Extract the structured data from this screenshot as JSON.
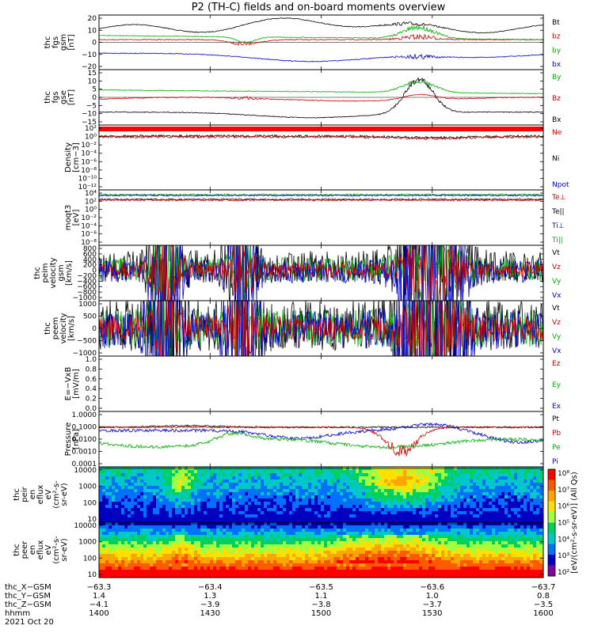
{
  "title": "P2 (TH-C) fields and on-board moments overview",
  "chart_data": {
    "type": "line",
    "title": "P2 (TH-C) fields and on-board moments overview",
    "panels": [
      {
        "id": "fgs-gsm",
        "ylabel": [
          "thc",
          "fgs",
          "gsm",
          "[nT]"
        ],
        "ylim": [
          -20,
          20
        ],
        "ticks": [
          "20",
          "10",
          "0",
          "−10",
          "−20"
        ],
        "legend": [
          {
            "name": "Bt",
            "color": "#000000"
          },
          {
            "name": "bz",
            "color": "#d00000"
          },
          {
            "name": "by",
            "color": "#00b000"
          },
          {
            "name": "bx",
            "color": "#0000d0"
          }
        ]
      },
      {
        "id": "fgs-gse",
        "ylabel": [
          "thc",
          "fgs",
          "gse",
          "[nT]"
        ],
        "ylim": [
          -15,
          15
        ],
        "ticks": [
          "15",
          "10",
          "5",
          "0",
          "−5",
          "−10",
          "−15"
        ],
        "legend": [
          {
            "name": "By",
            "color": "#00b000"
          },
          {
            "name": "Bz",
            "color": "#d00000"
          },
          {
            "name": "Bx",
            "color": "#000000"
          }
        ]
      },
      {
        "id": "density",
        "ylabel": [
          "Density",
          "[cm−3]"
        ],
        "ticks": [
          "10²",
          "10⁰",
          "10⁻²",
          "10⁻⁴",
          "10⁻⁶",
          "10⁻⁸",
          "10⁻¹⁰",
          "10⁻¹²"
        ],
        "legend": [
          {
            "name": "Ne",
            "color": "#d00000"
          },
          {
            "name": "Ni",
            "color": "#000000"
          },
          {
            "name": "Npot",
            "color": "#0000d0"
          }
        ]
      },
      {
        "id": "temperature",
        "ylabel": [
          "moqt3",
          "[eV]"
        ],
        "ticks": [
          "10⁴",
          "10²",
          "10⁰",
          "10⁻²",
          "10⁻⁴",
          "10⁻⁶",
          "10⁻⁸"
        ],
        "legend": [
          {
            "name": "Te⊥",
            "color": "#d00000"
          },
          {
            "name": "Te||",
            "color": "#000000"
          },
          {
            "name": "Ti⊥",
            "color": "#0000d0"
          },
          {
            "name": "Ti||",
            "color": "#00b000"
          }
        ]
      },
      {
        "id": "peim-velocity",
        "ylabel": [
          "thc",
          "peim",
          "velocity",
          "gsm",
          "[km/s]"
        ],
        "ylim": [
          -1000,
          800
        ],
        "ticks": [
          "800",
          "600",
          "400",
          "200",
          "0",
          "−200",
          "−400",
          "−600",
          "−800",
          "−1000"
        ],
        "legend": [
          {
            "name": "Vt",
            "color": "#000000"
          },
          {
            "name": "Vz",
            "color": "#d00000"
          },
          {
            "name": "Vy",
            "color": "#00b000"
          },
          {
            "name": "Vx",
            "color": "#0000d0"
          }
        ]
      },
      {
        "id": "peem-velocity",
        "ylabel": [
          "thc",
          "peem",
          "velocity",
          "[km/s]"
        ],
        "ylim": [
          -1000,
          1000
        ],
        "ticks": [
          "1000",
          "500",
          "0",
          "−500",
          "−1000"
        ],
        "legend": [
          {
            "name": "Vt",
            "color": "#000000"
          },
          {
            "name": "Vz",
            "color": "#d00000"
          },
          {
            "name": "Vy",
            "color": "#00b000"
          },
          {
            "name": "Vx",
            "color": "#0000d0"
          }
        ]
      },
      {
        "id": "efield",
        "ylabel": [
          "E=−VxB",
          "[mV/m]"
        ],
        "ylim": [
          0,
          1
        ],
        "ticks": [
          "1.0",
          "0.8",
          "0.6",
          "0.4",
          "0.2",
          "0.0"
        ],
        "legend": [
          {
            "name": "Ez",
            "color": "#d00000"
          },
          {
            "name": "Ey",
            "color": "#00b000"
          },
          {
            "name": "Ex",
            "color": "#0000d0"
          }
        ]
      },
      {
        "id": "pressure",
        "ylabel": [
          "Pressure",
          "[nPa]"
        ],
        "ticks": [
          "1.0000",
          "0.1000",
          "0.0100",
          "0.0010",
          "0.0001"
        ],
        "legend": [
          {
            "name": "Pt",
            "color": "#000000"
          },
          {
            "name": "Pb",
            "color": "#d00000"
          },
          {
            "name": "Pe",
            "color": "#00b000"
          },
          {
            "name": "Pi",
            "color": "#0000d0"
          }
        ]
      },
      {
        "id": "peir-spectrogram",
        "type": "heatmap",
        "ylabel": [
          "thc",
          "peir",
          "en",
          "eflux",
          "eV",
          "(cm²-s-",
          "sr-eV)"
        ],
        "ticks": [
          "10000",
          "1000",
          "100",
          "10"
        ]
      },
      {
        "id": "peer-spectrogram",
        "type": "heatmap",
        "ylabel": [
          "thc",
          "peer",
          "en",
          "eflux",
          "eV",
          "(cm²-s-",
          "sr-eV)"
        ],
        "ticks": [
          "10000",
          "1000",
          "100",
          "10"
        ]
      }
    ],
    "colorbar": {
      "label": "[eV/(cm²-s-sr-eV)] (All Qs)",
      "ticks": [
        "10⁸",
        "10⁷",
        "10⁶",
        "10⁵",
        "10⁴",
        "10³",
        "10²"
      ]
    },
    "x_axis": {
      "rows": [
        {
          "name": "thc_X−GSM",
          "values": [
            "−63.3",
            "−63.4",
            "−63.5",
            "−63.6",
            "−63.7"
          ]
        },
        {
          "name": "thc_Y−GSM",
          "values": [
            "1.4",
            "1.3",
            "1.1",
            "1.0",
            "0.8"
          ]
        },
        {
          "name": "thc_Z−GSM",
          "values": [
            "−4.1",
            "−3.9",
            "−3.8",
            "−3.7",
            "−3.5"
          ]
        },
        {
          "name": "hhmm",
          "values": [
            "1400",
            "1430",
            "1500",
            "1530",
            "1600"
          ]
        }
      ],
      "date": "2021 Oct 20"
    }
  }
}
